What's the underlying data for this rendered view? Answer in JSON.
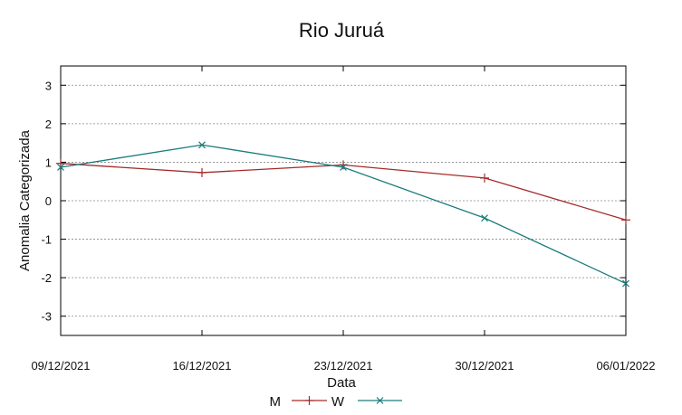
{
  "chart_data": {
    "type": "line",
    "title": "Rio Juruá",
    "xlabel": "Data",
    "ylabel": "Anomalia Categorizada",
    "categories": [
      "09/12/2021",
      "16/12/2021",
      "23/12/2021",
      "30/12/2021",
      "06/01/2022"
    ],
    "ylim": [
      -3.5,
      3.5
    ],
    "yticks": [
      "3",
      "2",
      "1",
      "0",
      "-1",
      "-2",
      "-3"
    ],
    "grid": "horizontal dashed",
    "legend": "bottom-center",
    "series": [
      {
        "name": "M",
        "values": [
          0.97,
          0.73,
          0.93,
          0.59,
          -0.5
        ],
        "color": "#a52a2a",
        "marker": "+"
      },
      {
        "name": "W",
        "values": [
          0.87,
          1.45,
          0.87,
          -0.45,
          -2.15
        ],
        "color": "#1a7b7b",
        "marker": "x"
      }
    ]
  }
}
